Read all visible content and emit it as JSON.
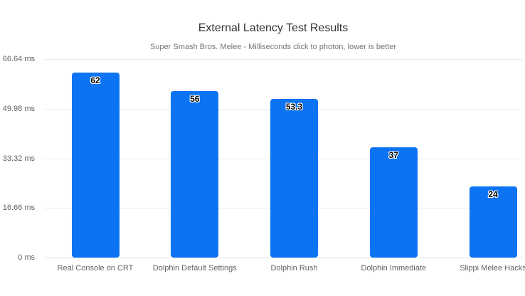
{
  "chart": {
    "title": "External Latency Test Results",
    "subtitle": "Super Smash Bros. Melee - Milliseconds click to photon, lower is better"
  },
  "colors": {
    "bar": "#0c74f2",
    "grid_line": "#ececec",
    "baseline": "#dce3ee",
    "title_text": "#333333",
    "subtitle_text": "#757575",
    "axis_label_text": "#5f6368",
    "value_label_text": "#000000",
    "value_label_outline": "#ffffff",
    "background": "#ffffff"
  },
  "chart_data": {
    "type": "bar",
    "title": "External Latency Test Results",
    "subtitle": "Super Smash Bros. Melee - Milliseconds click to photon, lower is better",
    "categories": [
      "Real Console on CRT",
      "Dolphin Default Settings",
      "Dolphin Rush",
      "Dolphin Immediate",
      "Slippi Melee Hacks"
    ],
    "values": [
      62,
      56,
      53.3,
      37,
      24
    ],
    "value_labels": [
      "62",
      "56",
      "53.3",
      "37",
      "24"
    ],
    "xlabel": "",
    "ylabel": "",
    "ylim": [
      0,
      66.64
    ],
    "yticks": [
      {
        "value": 0,
        "label": "0 ms"
      },
      {
        "value": 16.66,
        "label": "16.66 ms"
      },
      {
        "value": 33.32,
        "label": "33.32 ms"
      },
      {
        "value": 49.98,
        "label": "49.98 ms"
      },
      {
        "value": 66.64,
        "label": "66.64 ms"
      }
    ],
    "grid": true,
    "legend": "none"
  }
}
